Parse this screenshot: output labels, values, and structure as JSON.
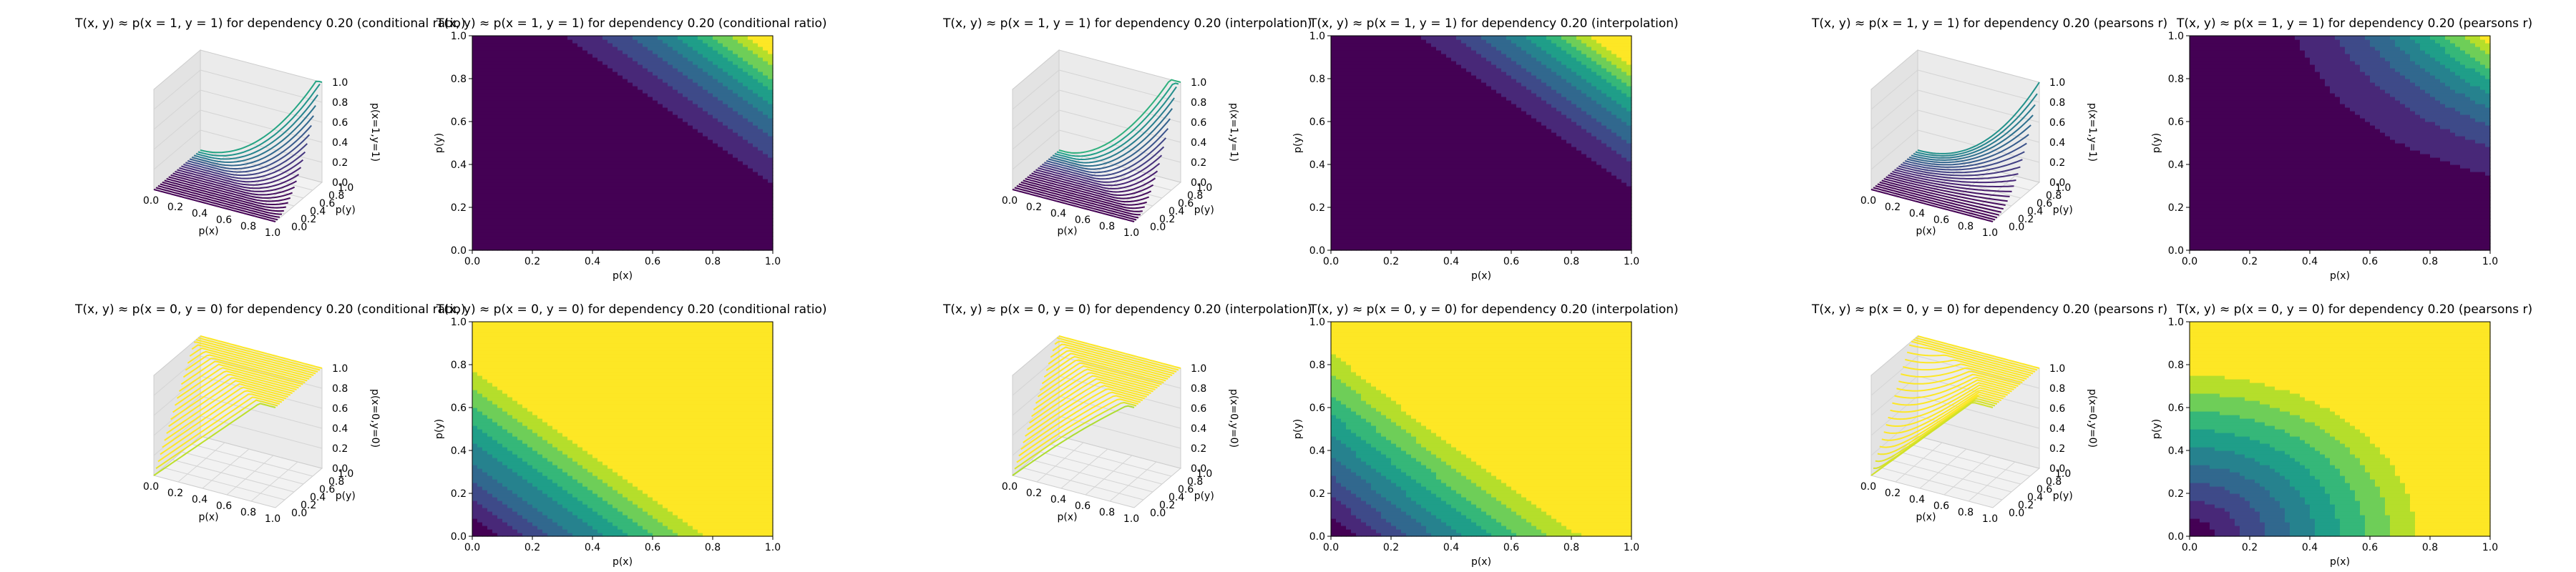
{
  "figure": {
    "colormap": "viridis",
    "colors": {
      "viridis_low": "#440154",
      "viridis_mid": "#21918c",
      "viridis_high": "#fde725",
      "pane_face": "#f2f2f2",
      "grid": "#cccccc"
    }
  },
  "chart_data": [
    {
      "id": "cr-11-surface",
      "type": "surface3d",
      "projection": "3d",
      "method": "conditional ratio",
      "target": "p(x=1,y=1)",
      "dependency": 0.2,
      "title": "T(x, y) ≈ p(x = 1, y = 1) for dependency 0.20 (conditional ratio)",
      "xlabel": "p(x)",
      "ylabel": "p(y)",
      "zlabel": "p(x=1,y=1)",
      "xticks": [
        "0.0",
        "0.2",
        "0.4",
        "0.6",
        "0.8",
        "1.0"
      ],
      "yticks": [
        "0.0",
        "0.2",
        "0.4",
        "0.6",
        "0.8",
        "1.0"
      ],
      "zticks": [
        "0.0",
        "0.2",
        "0.4",
        "0.6",
        "0.8",
        "1.0"
      ],
      "xlim": [
        0,
        1
      ],
      "ylim": [
        0,
        1
      ],
      "zlim": [
        0,
        1
      ]
    },
    {
      "id": "cr-11-contour",
      "type": "contour",
      "projection": "2d",
      "method": "conditional ratio",
      "target": "p(x=1,y=1)",
      "dependency": 0.2,
      "title": "T(x, y) ≈ p(x = 1, y = 1) for dependency 0.20 (conditional ratio)",
      "xlabel": "p(x)",
      "ylabel": "p(y)",
      "xticks": [
        "0.0",
        "0.2",
        "0.4",
        "0.6",
        "0.8",
        "1.0"
      ],
      "yticks": [
        "0.0",
        "0.2",
        "0.4",
        "0.6",
        "0.8",
        "1.0"
      ],
      "xlim": [
        0,
        1
      ],
      "ylim": [
        0,
        1
      ],
      "levels": 10
    },
    {
      "id": "in-11-surface",
      "type": "surface3d",
      "projection": "3d",
      "method": "interpolation",
      "target": "p(x=1,y=1)",
      "dependency": 0.2,
      "title": "T(x, y) ≈ p(x = 1, y = 1) for dependency 0.20 (interpolation)",
      "xlabel": "p(x)",
      "ylabel": "p(y)",
      "zlabel": "p(x=1,y=1)",
      "xticks": [
        "0.0",
        "0.2",
        "0.4",
        "0.6",
        "0.8",
        "1.0"
      ],
      "yticks": [
        "0.0",
        "0.2",
        "0.4",
        "0.6",
        "0.8",
        "1.0"
      ],
      "zticks": [
        "0.0",
        "0.2",
        "0.4",
        "0.6",
        "0.8",
        "1.0"
      ],
      "xlim": [
        0,
        1
      ],
      "ylim": [
        0,
        1
      ],
      "zlim": [
        0,
        1
      ]
    },
    {
      "id": "in-11-contour",
      "type": "contour",
      "projection": "2d",
      "method": "interpolation",
      "target": "p(x=1,y=1)",
      "dependency": 0.2,
      "title": "T(x, y) ≈ p(x = 1, y = 1) for dependency 0.20 (interpolation)",
      "xlabel": "p(x)",
      "ylabel": "p(y)",
      "xticks": [
        "0.0",
        "0.2",
        "0.4",
        "0.6",
        "0.8",
        "1.0"
      ],
      "yticks": [
        "0.0",
        "0.2",
        "0.4",
        "0.6",
        "0.8",
        "1.0"
      ],
      "xlim": [
        0,
        1
      ],
      "ylim": [
        0,
        1
      ],
      "levels": 10
    },
    {
      "id": "pr-11-surface",
      "type": "surface3d",
      "projection": "3d",
      "method": "pearsons r",
      "target": "p(x=1,y=1)",
      "dependency": 0.2,
      "title": "T(x, y) ≈ p(x = 1, y = 1) for dependency 0.20 (pearsons r)",
      "xlabel": "p(x)",
      "ylabel": "p(y)",
      "zlabel": "p(x=1,y=1)",
      "xticks": [
        "0.0",
        "0.2",
        "0.4",
        "0.6",
        "0.8",
        "1.0"
      ],
      "yticks": [
        "0.0",
        "0.2",
        "0.4",
        "0.6",
        "0.8",
        "1.0"
      ],
      "zticks": [
        "0.0",
        "0.2",
        "0.4",
        "0.6",
        "0.8",
        "1.0"
      ],
      "xlim": [
        0,
        1
      ],
      "ylim": [
        0,
        1
      ],
      "zlim": [
        0,
        1
      ]
    },
    {
      "id": "pr-11-contour",
      "type": "contour",
      "projection": "2d",
      "method": "pearsons r",
      "target": "p(x=1,y=1)",
      "dependency": 0.2,
      "title": "T(x, y) ≈ p(x = 1, y = 1) for dependency 0.20 (pearsons r)",
      "xlabel": "p(x)",
      "ylabel": "p(y)",
      "xticks": [
        "0.0",
        "0.2",
        "0.4",
        "0.6",
        "0.8",
        "1.0"
      ],
      "yticks": [
        "0.0",
        "0.2",
        "0.4",
        "0.6",
        "0.8",
        "1.0"
      ],
      "xlim": [
        0,
        1
      ],
      "ylim": [
        0,
        1
      ],
      "levels": 10
    },
    {
      "id": "cr-00-surface",
      "type": "surface3d",
      "projection": "3d",
      "method": "conditional ratio",
      "target": "p(x=0,y=0)",
      "dependency": 0.2,
      "title": "T(x, y) ≈ p(x = 0, y = 0) for dependency 0.20 (conditional ratio)",
      "xlabel": "p(x)",
      "ylabel": "p(y)",
      "zlabel": "p(x=0,y=0)",
      "xticks": [
        "0.0",
        "0.2",
        "0.4",
        "0.6",
        "0.8",
        "1.0"
      ],
      "yticks": [
        "0.0",
        "0.2",
        "0.4",
        "0.6",
        "0.8",
        "1.0"
      ],
      "zticks": [
        "0.0",
        "0.2",
        "0.4",
        "0.6",
        "0.8",
        "1.0"
      ],
      "xlim": [
        0,
        1
      ],
      "ylim": [
        0,
        1
      ],
      "zlim": [
        0,
        1
      ]
    },
    {
      "id": "cr-00-contour",
      "type": "contour",
      "projection": "2d",
      "method": "conditional ratio",
      "target": "p(x=0,y=0)",
      "dependency": 0.2,
      "title": "T(x, y) ≈ p(x = 0, y = 0) for dependency 0.20 (conditional ratio)",
      "xlabel": "p(x)",
      "ylabel": "p(y)",
      "xticks": [
        "0.0",
        "0.2",
        "0.4",
        "0.6",
        "0.8",
        "1.0"
      ],
      "yticks": [
        "0.0",
        "0.2",
        "0.4",
        "0.6",
        "0.8",
        "1.0"
      ],
      "xlim": [
        0,
        1
      ],
      "ylim": [
        0,
        1
      ],
      "levels": 10
    },
    {
      "id": "in-00-surface",
      "type": "surface3d",
      "projection": "3d",
      "method": "interpolation",
      "target": "p(x=0,y=0)",
      "dependency": 0.2,
      "title": "T(x, y) ≈ p(x = 0, y = 0) for dependency 0.20 (interpolation)",
      "xlabel": "p(x)",
      "ylabel": "p(y)",
      "zlabel": "p(x=0,y=0)",
      "xticks": [
        "0.0",
        "0.2",
        "0.4",
        "0.6",
        "0.8",
        "1.0"
      ],
      "yticks": [
        "0.0",
        "0.2",
        "0.4",
        "0.6",
        "0.8",
        "1.0"
      ],
      "zticks": [
        "0.0",
        "0.2",
        "0.4",
        "0.6",
        "0.8",
        "1.0"
      ],
      "xlim": [
        0,
        1
      ],
      "ylim": [
        0,
        1
      ],
      "zlim": [
        0,
        1
      ]
    },
    {
      "id": "in-00-contour",
      "type": "contour",
      "projection": "2d",
      "method": "interpolation",
      "target": "p(x=0,y=0)",
      "dependency": 0.2,
      "title": "T(x, y) ≈ p(x = 0, y = 0) for dependency 0.20 (interpolation)",
      "xlabel": "p(x)",
      "ylabel": "p(y)",
      "xticks": [
        "0.0",
        "0.2",
        "0.4",
        "0.6",
        "0.8",
        "1.0"
      ],
      "yticks": [
        "0.0",
        "0.2",
        "0.4",
        "0.6",
        "0.8",
        "1.0"
      ],
      "xlim": [
        0,
        1
      ],
      "ylim": [
        0,
        1
      ],
      "levels": 10
    },
    {
      "id": "pr-00-surface",
      "type": "surface3d",
      "projection": "3d",
      "method": "pearsons r",
      "target": "p(x=0,y=0)",
      "dependency": 0.2,
      "title": "T(x, y) ≈ p(x = 0, y = 0) for dependency 0.20 (pearsons r)",
      "xlabel": "p(x)",
      "ylabel": "p(y)",
      "zlabel": "p(x=0,y=0)",
      "xticks": [
        "0.0",
        "0.2",
        "0.4",
        "0.6",
        "0.8",
        "1.0"
      ],
      "yticks": [
        "0.0",
        "0.2",
        "0.4",
        "0.6",
        "0.8",
        "1.0"
      ],
      "zticks": [
        "0.0",
        "0.2",
        "0.4",
        "0.6",
        "0.8",
        "1.0"
      ],
      "xlim": [
        0,
        1
      ],
      "ylim": [
        0,
        1
      ],
      "zlim": [
        0,
        1
      ]
    },
    {
      "id": "pr-00-contour",
      "type": "contour",
      "projection": "2d",
      "method": "pearsons r",
      "target": "p(x=0,y=0)",
      "dependency": 0.2,
      "title": "T(x, y) ≈ p(x = 0, y = 0) for dependency 0.20 (pearsons r)",
      "xlabel": "p(x)",
      "ylabel": "p(y)",
      "xticks": [
        "0.0",
        "0.2",
        "0.4",
        "0.6",
        "0.8",
        "1.0"
      ],
      "yticks": [
        "0.0",
        "0.2",
        "0.4",
        "0.6",
        "0.8",
        "1.0"
      ],
      "xlim": [
        0,
        1
      ],
      "ylim": [
        0,
        1
      ],
      "levels": 10
    }
  ]
}
